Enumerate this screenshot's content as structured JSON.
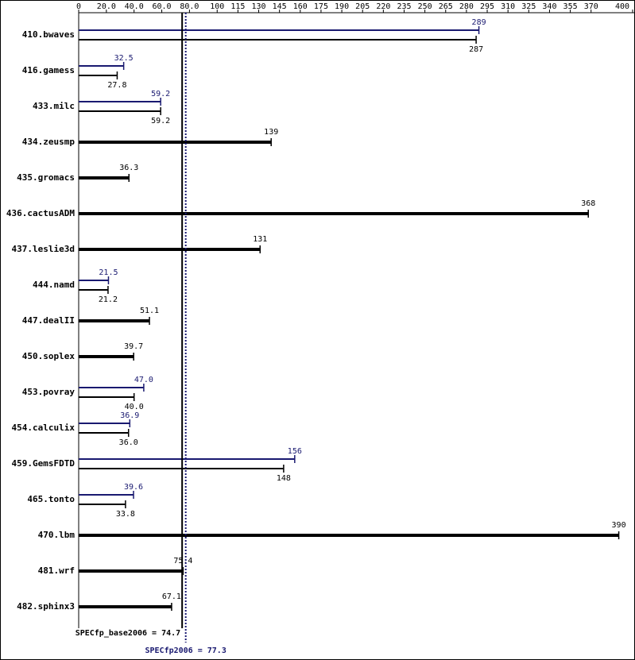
{
  "chart_data": {
    "type": "bar",
    "categories": [
      "410.bwaves",
      "416.gamess",
      "433.milc",
      "434.zeusmp",
      "435.gromacs",
      "436.cactusADM",
      "437.leslie3d",
      "444.namd",
      "447.dealII",
      "450.soplex",
      "453.povray",
      "454.calculix",
      "459.GemsFDTD",
      "465.tonto",
      "470.lbm",
      "481.wrf",
      "482.sphinx3"
    ],
    "series": [
      {
        "color": "#000000",
        "values": [
          287,
          27.8,
          59.2,
          139,
          36.3,
          368,
          131,
          21.2,
          51.1,
          39.7,
          40.0,
          36.0,
          148,
          33.8,
          390,
          75.4,
          67.1
        ],
        "value_labels": [
          "287",
          "27.8",
          "59.2",
          "139",
          "36.3",
          "368",
          "131",
          "21.2",
          "51.1",
          "39.7",
          "40.0",
          "36.0",
          "148",
          "33.8",
          "390",
          "75.4",
          "67.1"
        ]
      },
      {
        "color": "#191970",
        "values": [
          289,
          32.5,
          59.2,
          null,
          null,
          null,
          null,
          21.5,
          null,
          null,
          47.0,
          36.9,
          156,
          39.6,
          null,
          null,
          null
        ],
        "value_labels": [
          "289",
          "32.5",
          "59.2",
          null,
          null,
          null,
          null,
          "21.5",
          null,
          null,
          "47.0",
          "36.9",
          "156",
          "39.6",
          null,
          null,
          null
        ]
      }
    ],
    "reference_lines": [
      {
        "value": 74.7,
        "label": "SPECfp_base2006 = 74.7",
        "color": "#000000"
      },
      {
        "value": 77.3,
        "label": "SPECfp2006 = 77.3",
        "color": "#191970"
      }
    ],
    "xlim": [
      0,
      400
    ],
    "xticks": [
      0,
      {
        "value": 20,
        "label": "20.0"
      },
      {
        "value": 40,
        "label": "40.0"
      },
      {
        "value": 60,
        "label": "60.0"
      },
      {
        "value": 80,
        "label": "80.0"
      },
      100,
      115,
      130,
      145,
      160,
      175,
      190,
      205,
      220,
      235,
      250,
      265,
      280,
      295,
      310,
      325,
      340,
      355,
      370,
      400
    ]
  }
}
